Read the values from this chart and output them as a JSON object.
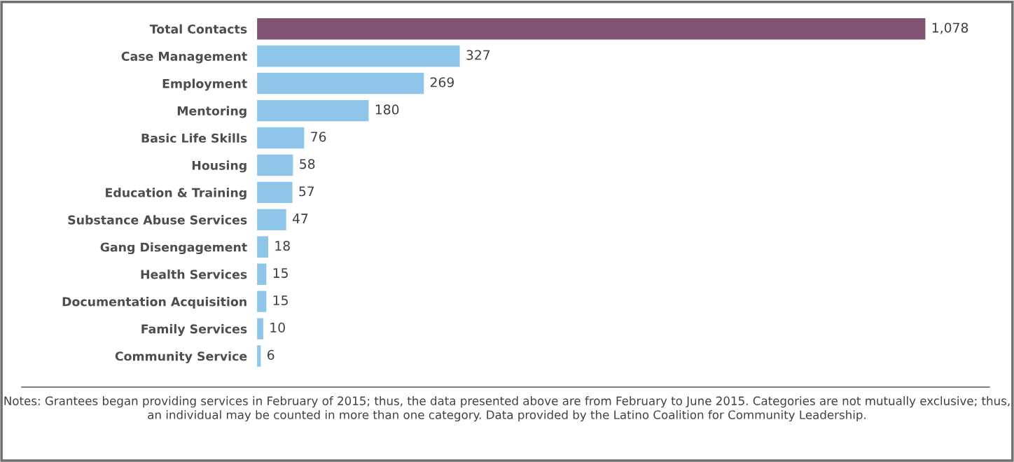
{
  "chart_data": {
    "type": "bar",
    "orientation": "horizontal",
    "categories": [
      "Total Contacts",
      "Case Management",
      "Employment",
      "Mentoring",
      "Basic Life Skills",
      "Housing",
      "Education & Training",
      "Substance Abuse Services",
      "Gang Disengagement",
      "Health Services",
      "Documentation Acquisition",
      "Family Services",
      "Community Service"
    ],
    "values": [
      1078,
      327,
      269,
      180,
      76,
      58,
      57,
      47,
      18,
      15,
      15,
      10,
      6
    ],
    "colors": [
      "#805472",
      "#8ec5e8",
      "#8ec5e8",
      "#8ec5e8",
      "#8ec5e8",
      "#8ec5e8",
      "#8ec5e8",
      "#8ec5e8",
      "#8ec5e8",
      "#8ec5e8",
      "#8ec5e8",
      "#8ec5e8",
      "#8ec5e8"
    ],
    "value_labels": [
      "1,078",
      "327",
      "269",
      "180",
      "76",
      "58",
      "57",
      "47",
      "18",
      "15",
      "15",
      "10",
      "6"
    ],
    "grid": false,
    "legend": false,
    "annotations": [
      "Notes: Grantees began providing services in February of 2015; thus, the data presented above are from February to June 2015. Categories are not mutually exclusive; thus, an individual may be counted in more than one category. Data provided by the Latino Coalition for Community Leadership."
    ]
  }
}
